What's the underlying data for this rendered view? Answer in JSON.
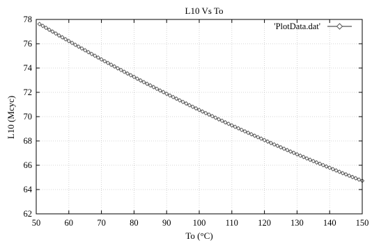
{
  "chart_data": {
    "type": "line",
    "title": "L10 Vs To",
    "xlabel": "To (°C)",
    "ylabel": "L10 (Mcyc)",
    "xlim": [
      50,
      150
    ],
    "ylim": [
      62,
      78
    ],
    "x_ticks": [
      "50",
      "60",
      "70",
      "80",
      "90",
      "100",
      "110",
      "120",
      "130",
      "140",
      "150"
    ],
    "y_ticks": [
      "62",
      "64",
      "66",
      "68",
      "70",
      "72",
      "74",
      "76",
      "78"
    ],
    "grid": true,
    "legend_position": "top-right",
    "series": [
      {
        "name": "'PlotData.dat'",
        "marker": "diamond",
        "color": "#555555",
        "x": [
          51,
          52,
          53,
          54,
          55,
          56,
          57,
          58,
          59,
          60,
          61,
          62,
          63,
          64,
          65,
          66,
          67,
          68,
          69,
          70,
          71,
          72,
          73,
          74,
          75,
          76,
          77,
          78,
          79,
          80,
          81,
          82,
          83,
          84,
          85,
          86,
          87,
          88,
          89,
          90,
          91,
          92,
          93,
          94,
          95,
          96,
          97,
          98,
          99,
          100,
          101,
          102,
          103,
          104,
          105,
          106,
          107,
          108,
          109,
          110,
          111,
          112,
          113,
          114,
          115,
          116,
          117,
          118,
          119,
          120,
          121,
          122,
          123,
          124,
          125,
          126,
          127,
          128,
          129,
          130,
          131,
          132,
          133,
          134,
          135,
          136,
          137,
          138,
          139,
          140,
          141,
          142,
          143,
          144,
          145,
          146,
          147,
          148,
          149,
          150
        ],
        "y": [
          77.62,
          77.47,
          77.31,
          77.15,
          77.0,
          76.84,
          76.68,
          76.53,
          76.37,
          76.22,
          76.07,
          75.91,
          75.76,
          75.61,
          75.46,
          75.31,
          75.16,
          75.01,
          74.86,
          74.71,
          74.56,
          74.42,
          74.27,
          74.13,
          73.98,
          73.84,
          73.69,
          73.55,
          73.41,
          73.27,
          73.12,
          72.98,
          72.84,
          72.7,
          72.57,
          72.43,
          72.29,
          72.15,
          72.02,
          71.88,
          71.74,
          71.61,
          71.48,
          71.34,
          71.21,
          71.08,
          70.94,
          70.81,
          70.68,
          70.55,
          70.42,
          70.29,
          70.17,
          70.04,
          69.91,
          69.78,
          69.66,
          69.53,
          69.41,
          69.28,
          69.16,
          69.04,
          68.91,
          68.79,
          68.67,
          68.55,
          68.43,
          68.31,
          68.19,
          68.07,
          67.95,
          67.83,
          67.71,
          67.6,
          67.48,
          67.36,
          67.25,
          67.13,
          67.02,
          66.9,
          66.79,
          66.68,
          66.56,
          66.45,
          66.34,
          66.23,
          66.12,
          66.01,
          65.9,
          65.79,
          65.68,
          65.57,
          65.46,
          65.35,
          65.25,
          65.14,
          65.03,
          64.93,
          64.82,
          64.72
        ]
      }
    ]
  }
}
